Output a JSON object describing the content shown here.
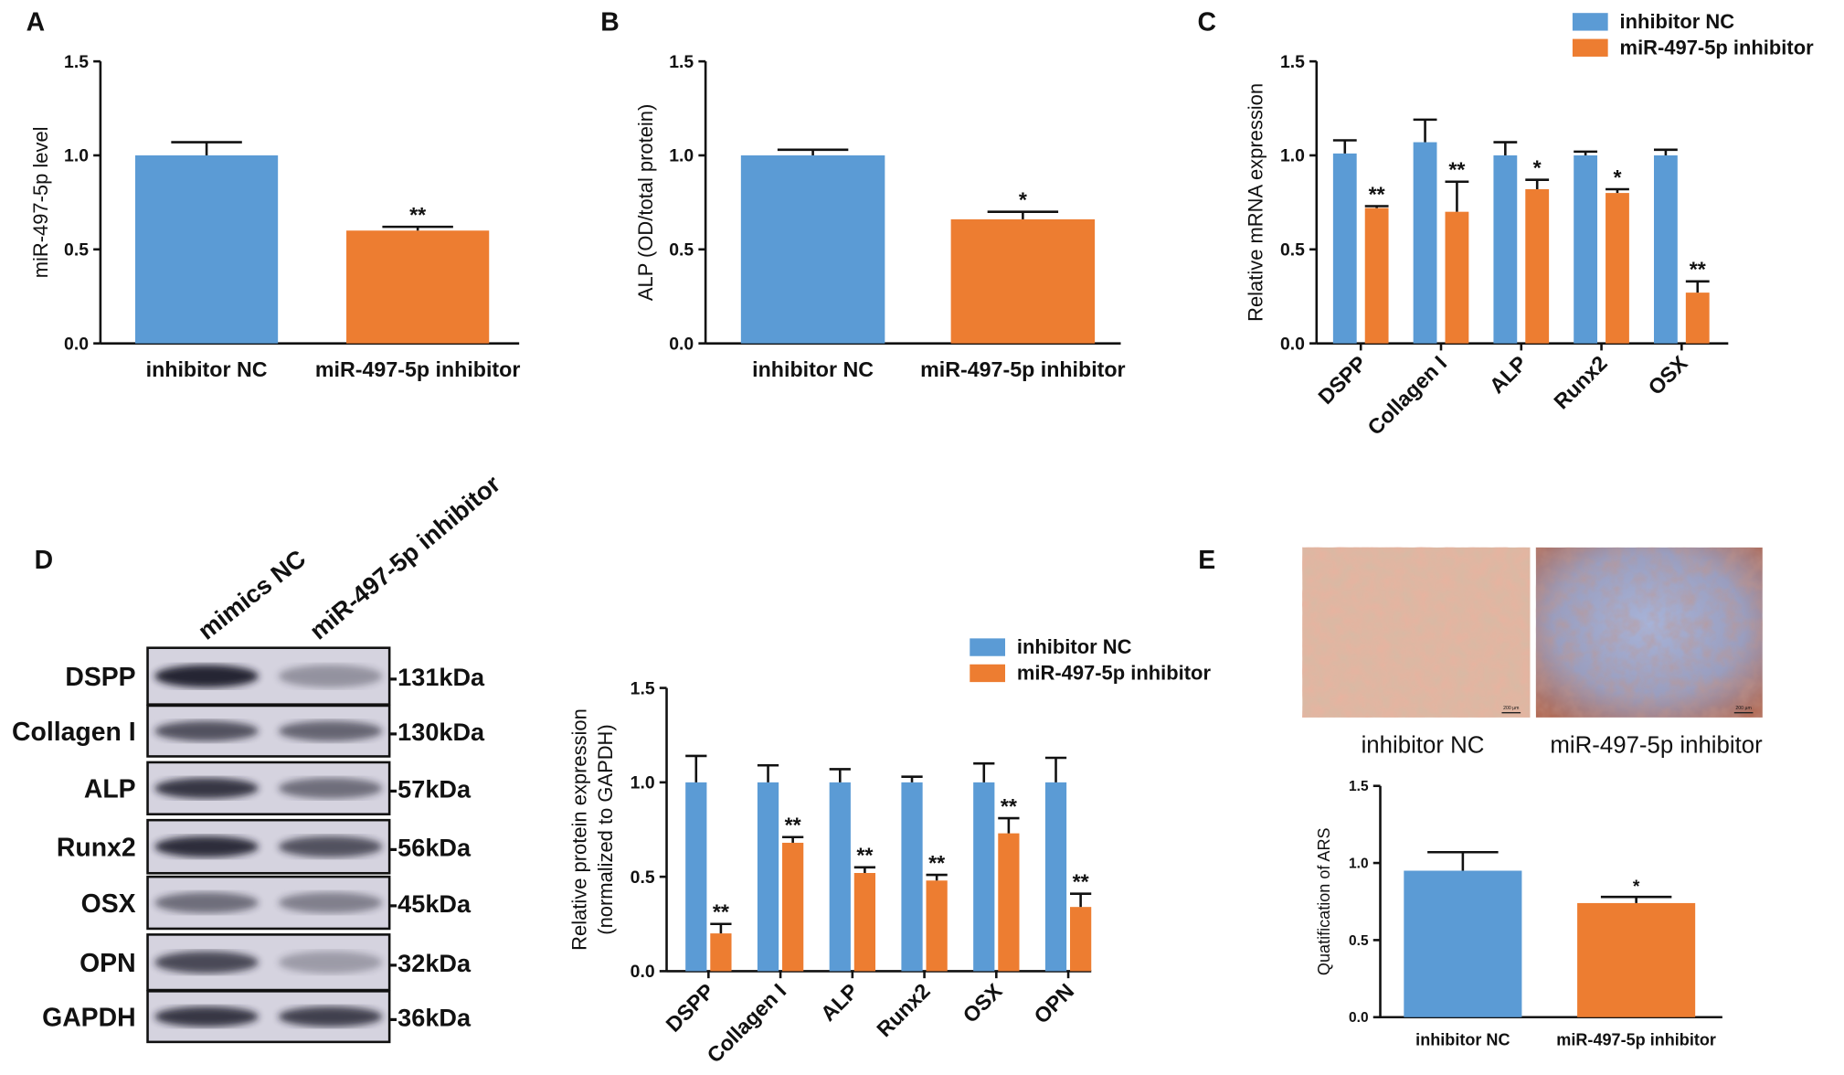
{
  "chart_data": [
    {
      "type": "bar",
      "panel": "A",
      "ylabel": "miR-497-5p level",
      "categories": [
        "inhibitor NC",
        "miR-497-5p inhibitor"
      ],
      "values": [
        1.0,
        0.6
      ],
      "errors": [
        0.07,
        0.02
      ],
      "annotations": [
        null,
        "**"
      ],
      "colors": [
        "#5b9bd5",
        "#ed7d31"
      ],
      "ylim": [
        0,
        1.5
      ],
      "yticks": [
        {
          "value": 0,
          "label": "0.0"
        },
        {
          "value": 0.5,
          "label": "0.5"
        },
        {
          "value": 1,
          "label": "1.0"
        },
        {
          "value": 1.5,
          "label": "1.5"
        }
      ]
    },
    {
      "type": "bar",
      "panel": "B",
      "ylabel": "ALP (OD/total protein)",
      "categories": [
        "inhibitor NC",
        "miR-497-5p inhibitor"
      ],
      "values": [
        1.0,
        0.66
      ],
      "errors": [
        0.03,
        0.04
      ],
      "annotations": [
        null,
        "*"
      ],
      "colors": [
        "#5b9bd5",
        "#ed7d31"
      ],
      "ylim": [
        0,
        1.5
      ],
      "yticks": [
        {
          "value": 0,
          "label": "0.0"
        },
        {
          "value": 0.5,
          "label": "0.5"
        },
        {
          "value": 1,
          "label": "1.0"
        },
        {
          "value": 1.5,
          "label": "1.5"
        }
      ]
    },
    {
      "type": "grouped_bar",
      "panel": "C",
      "ylabel": "Relative mRNA expression",
      "categories": [
        "DSPP",
        "Collagen I",
        "ALP",
        "Runx2",
        "OSX"
      ],
      "series": [
        {
          "name": "inhibitor NC",
          "color": "#5b9bd5",
          "values": [
            1.01,
            1.07,
            1.0,
            1.0,
            1.0
          ],
          "errors": [
            0.07,
            0.12,
            0.07,
            0.02,
            0.03
          ],
          "annotations": [
            null,
            null,
            null,
            null,
            null
          ]
        },
        {
          "name": "miR-497-5p inhibitor",
          "color": "#ed7d31",
          "values": [
            0.72,
            0.7,
            0.82,
            0.8,
            0.27
          ],
          "errors": [
            0.01,
            0.16,
            0.05,
            0.02,
            0.06
          ],
          "annotations": [
            "**",
            "**",
            "*",
            "*",
            "**"
          ]
        }
      ],
      "ylim": [
        0,
        1.5
      ],
      "yticks": [
        {
          "value": 0,
          "label": "0.0"
        },
        {
          "value": 0.5,
          "label": "0.5"
        },
        {
          "value": 1,
          "label": "1.0"
        },
        {
          "value": 1.5,
          "label": "1.5"
        }
      ]
    },
    {
      "type": "grouped_bar",
      "ylabel": [
        "Relative protein expression",
        "(normalized to GAPDH)"
      ],
      "categories": [
        "DSPP",
        "Collagen I",
        "ALP",
        "Runx2",
        "OSX",
        "OPN"
      ],
      "series": [
        {
          "name": "inhibitor NC",
          "color": "#5b9bd5",
          "values": [
            1.0,
            1.0,
            1.0,
            1.0,
            1.0,
            1.0
          ],
          "errors": [
            0.14,
            0.09,
            0.07,
            0.03,
            0.1,
            0.13
          ],
          "annotations": [
            null,
            null,
            null,
            null,
            null,
            null
          ]
        },
        {
          "name": "miR-497-5p inhibitor",
          "color": "#ed7d31",
          "values": [
            0.2,
            0.68,
            0.52,
            0.48,
            0.73,
            0.34
          ],
          "errors": [
            0.05,
            0.03,
            0.03,
            0.03,
            0.08,
            0.07
          ],
          "annotations": [
            "**",
            "**",
            "**",
            "**",
            "**",
            "**"
          ]
        }
      ],
      "ylim": [
        0,
        1.5
      ],
      "yticks": [
        {
          "value": 0,
          "label": "0.0"
        },
        {
          "value": 0.5,
          "label": "0.5"
        },
        {
          "value": 1,
          "label": "1.0"
        },
        {
          "value": 1.5,
          "label": "1.5"
        }
      ]
    },
    {
      "type": "bar",
      "ylabel": "Quatification of ARS",
      "categories": [
        "inhibitor NC",
        "miR-497-5p inhibitor"
      ],
      "values": [
        0.95,
        0.74
      ],
      "errors": [
        0.12,
        0.04
      ],
      "annotations": [
        null,
        "*"
      ],
      "colors": [
        "#5b9bd5",
        "#ed7d31"
      ],
      "ylim": [
        0,
        1.5
      ],
      "yticks": [
        {
          "value": 0,
          "label": "0.0"
        },
        {
          "value": 0.5,
          "label": "0.5"
        },
        {
          "value": 1,
          "label": "1.0"
        },
        {
          "value": 1.5,
          "label": "1.5"
        }
      ]
    }
  ],
  "blot": {
    "panel": "D",
    "lanes": [
      "mimics NC",
      "miR-497-5p inhibitor"
    ],
    "proteins": [
      "DSPP",
      "Collagen I",
      "ALP",
      "Runx2",
      "OSX",
      "OPN",
      "GAPDH"
    ],
    "sizes": [
      "-131kDa",
      "-130kDa",
      "-57kDa",
      "-56kDa",
      "-45kDa",
      "-32kDa",
      "-36kDa"
    ]
  },
  "staining": {
    "panel": "E",
    "captions": [
      "inhibitor NC",
      "miR-497-5p inhibitor"
    ],
    "scale_bar": "200 µm"
  }
}
